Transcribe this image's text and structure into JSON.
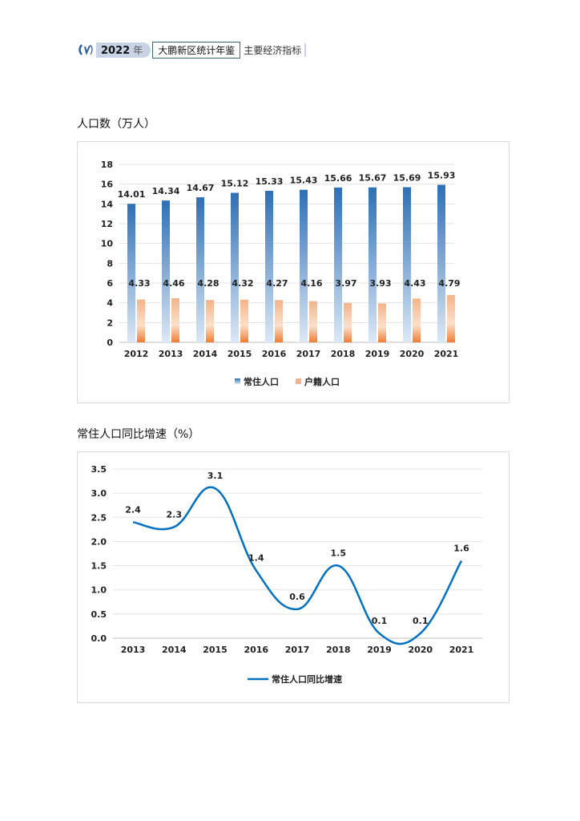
{
  "header": {
    "year": "2022",
    "year_suffix": "年",
    "book": "大鹏新区统计年鉴",
    "section": "主要经济指标"
  },
  "chart_data": [
    {
      "type": "bar",
      "title": "人口数（万人）",
      "categories": [
        "2012",
        "2013",
        "2014",
        "2015",
        "2016",
        "2017",
        "2018",
        "2019",
        "2020",
        "2021"
      ],
      "series": [
        {
          "name": "常住人口",
          "values": [
            14.01,
            14.34,
            14.67,
            15.12,
            15.33,
            15.43,
            15.66,
            15.67,
            15.69,
            15.93
          ],
          "color": "#2e75b6"
        },
        {
          "name": "户籍人口",
          "values": [
            4.33,
            4.46,
            4.28,
            4.32,
            4.27,
            4.16,
            3.97,
            3.93,
            4.43,
            4.79
          ],
          "color": "#ed7d31"
        }
      ],
      "yticks": [
        "0",
        "2",
        "4",
        "6",
        "8",
        "10",
        "12",
        "14",
        "16",
        "18"
      ],
      "ylim": [
        0,
        18
      ],
      "grid": true,
      "legend": "bottom"
    },
    {
      "type": "line",
      "title": "常住人口同比增速（%）",
      "categories": [
        "2013",
        "2014",
        "2015",
        "2016",
        "2017",
        "2018",
        "2019",
        "2020",
        "2021"
      ],
      "series": [
        {
          "name": "常住人口同比增速",
          "values": [
            2.4,
            2.3,
            3.1,
            1.4,
            0.6,
            1.5,
            0.1,
            0.1,
            1.6
          ],
          "color": "#0070c0"
        }
      ],
      "yticks": [
        "0.0",
        "0.5",
        "1.0",
        "1.5",
        "2.0",
        "2.5",
        "3.0",
        "3.5"
      ],
      "ylim": [
        0,
        3.5
      ],
      "grid": true,
      "legend": "bottom"
    }
  ]
}
